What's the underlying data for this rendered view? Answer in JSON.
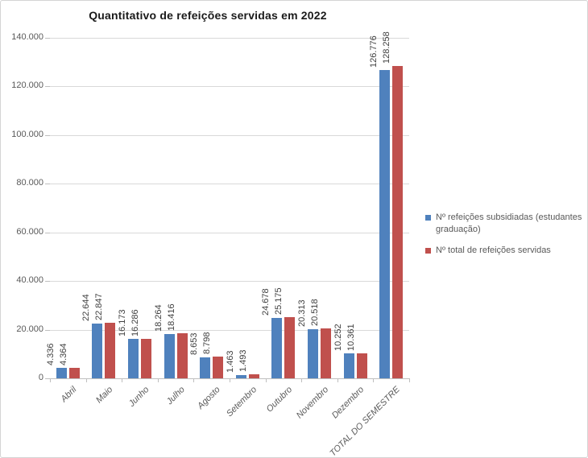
{
  "chart_data": {
    "type": "bar",
    "title": "Quantitativo de refeições servidas em 2022",
    "categories": [
      "Abril",
      "Maio",
      "Junho",
      "Julho",
      "Agosto",
      "Setembro",
      "Outubro",
      "Novembro",
      "Dezembro",
      "TOTAL DO SEMESTRE"
    ],
    "series": [
      {
        "name": "Nº refeições subsidiadas (estudantes graduação)",
        "color": "#4F81BD",
        "values": [
          4336,
          22644,
          16173,
          18264,
          8653,
          1463,
          24678,
          20313,
          10252,
          126776
        ]
      },
      {
        "name": "Nº total de refeições servidas",
        "color": "#C0504D",
        "values": [
          4364,
          22847,
          16286,
          18416,
          8798,
          1493,
          25175,
          20518,
          10361,
          128258
        ]
      }
    ],
    "y_axis": {
      "min": 0,
      "max": 140000,
      "step": 20000,
      "tick_labels": [
        "0",
        "20.000",
        "40.000",
        "60.000",
        "80.000",
        "100.000",
        "120.000",
        "140.000"
      ]
    },
    "thousands_separator": ".",
    "data_labels_visible": true,
    "grid": "horizontal",
    "legend_position": "right"
  }
}
